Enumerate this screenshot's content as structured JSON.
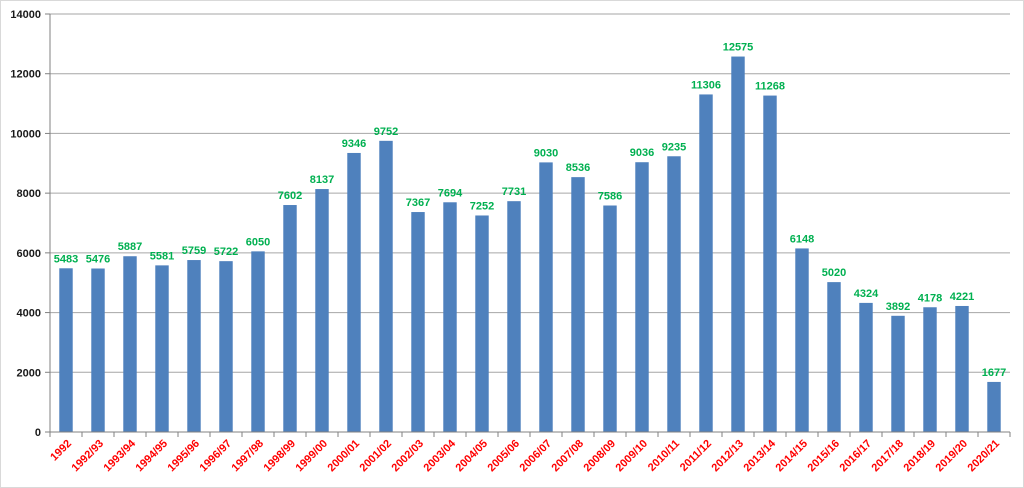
{
  "chart_data": {
    "type": "bar",
    "title": "",
    "xlabel": "",
    "ylabel": "",
    "categories": [
      "1992",
      "1992/93",
      "1993/94",
      "1994/95",
      "1995/96",
      "1996/97",
      "1997/98",
      "1998/99",
      "1999/00",
      "2000/01",
      "2001/02",
      "2002/03",
      "2003/04",
      "2004/05",
      "2005/06",
      "2006/07",
      "2007/08",
      "2008/09",
      "2009/10",
      "2010/11",
      "2011/12",
      "2012/13",
      "2013/14",
      "2014/15",
      "2015/16",
      "2016/17",
      "2017/18",
      "2018/19",
      "2019/20",
      "2020/21"
    ],
    "values": [
      5483,
      5476,
      5887,
      5581,
      5759,
      5722,
      6050,
      7602,
      8137,
      9346,
      9752,
      7367,
      7694,
      7252,
      7731,
      9030,
      8536,
      7586,
      9036,
      9235,
      11306,
      12575,
      11268,
      6148,
      5020,
      4324,
      3892,
      4178,
      4221,
      1677
    ],
    "data_labels": [
      "5483",
      "5476",
      "5887",
      "5581",
      "5759",
      "5722",
      "6050",
      "7602",
      "8137",
      "9346",
      "9752",
      "7367",
      "7694",
      "7252",
      "7731",
      "9030",
      "8536",
      "7586",
      "9036",
      "9235",
      "11306",
      "12575",
      "11268",
      "6148",
      "5020",
      "4324",
      "3892",
      "4178",
      "4221",
      "1677"
    ],
    "ylim": [
      0,
      14000
    ],
    "yticks": [
      0,
      2000,
      4000,
      6000,
      8000,
      10000,
      12000,
      14000
    ],
    "ytick_labels": [
      "0",
      "2000",
      "4000",
      "6000",
      "8000",
      "10000",
      "12000",
      "14000"
    ],
    "grid": true,
    "legend": "none",
    "x_tick_rotation": "diagonal",
    "colors": {
      "bar": "#4F81BD",
      "data_label": "#00B050",
      "x_tick_label": "#FF0000",
      "y_tick_label": "#1a1a1a",
      "gridline": "#A6A6A6",
      "axis": "#808080",
      "frame": "#D9D9D9"
    }
  }
}
